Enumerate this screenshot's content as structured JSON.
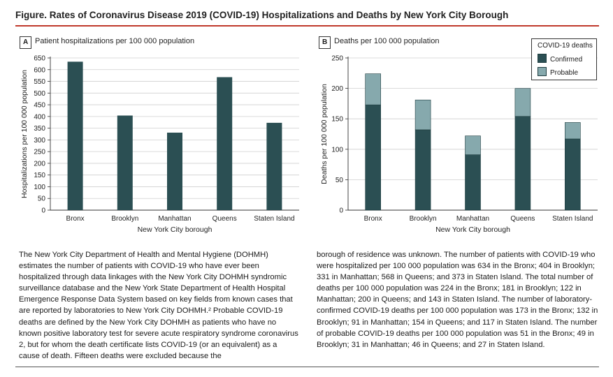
{
  "figure": {
    "title": "Figure. Rates of Coronavirus Disease 2019 (COVID-19) Hospitalizations and Deaths by New York City Borough"
  },
  "panel_a": {
    "label": "A",
    "heading": "Patient hospitalizations per 100 000 population"
  },
  "panel_b": {
    "label": "B",
    "heading": "Deaths per 100 000 population"
  },
  "legend": {
    "title": "COVID-19 deaths",
    "items": [
      "Confirmed",
      "Probable"
    ]
  },
  "colors": {
    "confirmed": "#2b4f53",
    "probable": "#86a9ad",
    "title_rule": "#c0392b"
  },
  "chart_data": [
    {
      "type": "bar",
      "categories": [
        "Bronx",
        "Brooklyn",
        "Manhattan",
        "Queens",
        "Staten Island"
      ],
      "values": [
        634,
        404,
        331,
        568,
        373
      ],
      "xlabel": "New York City borough",
      "ylabel": "Hospitalizations per 100 000 population",
      "ylim": [
        0,
        650
      ],
      "yticks": [
        0,
        50,
        100,
        150,
        200,
        250,
        300,
        350,
        400,
        450,
        500,
        550,
        600,
        650
      ],
      "grid": true
    },
    {
      "type": "bar",
      "stacked": true,
      "categories": [
        "Bronx",
        "Brooklyn",
        "Manhattan",
        "Queens",
        "Staten Island"
      ],
      "series": [
        {
          "name": "Confirmed",
          "values": [
            173,
            132,
            91,
            154,
            117
          ]
        },
        {
          "name": "Probable",
          "values": [
            51,
            49,
            31,
            46,
            27
          ]
        }
      ],
      "xlabel": "New York City borough",
      "ylabel": "Deaths per 100 000 population",
      "ylim": [
        0,
        250
      ],
      "yticks": [
        0,
        50,
        100,
        150,
        200,
        250
      ],
      "grid": true,
      "legend_position": "top-right"
    }
  ],
  "body_text": {
    "left": "The New York City Department of Health and Mental Hygiene (DOHMH) estimates the number of patients with COVID-19 who have ever been hospitalized through data linkages with the New York City DOHMH syndromic surveillance database and the New York State Department of Health Hospital Emergence Response Data System based on key fields from known cases that are reported by laboratories to New York City DOHMH.² Probable COVID-19 deaths are defined by the New York City DOHMH as patients who have no known positive laboratory test for severe acute respiratory syndrome coronavirus 2, but for whom the death certificate lists COVID-19 (or an equivalent) as a cause of death. Fifteen deaths were excluded because the",
    "right": "borough of residence was unknown. The number of patients with COVID-19 who were hospitalized per 100 000 population was 634 in the Bronx; 404 in Brooklyn; 331 in Manhattan; 568 in Queens; and 373 in Staten Island. The total number of deaths per 100 000 population was 224 in the Bronx; 181 in Brooklyn; 122 in Manhattan; 200 in Queens; and 143 in Staten Island. The number of laboratory-confirmed COVID-19 deaths per 100 000 population was 173 in the Bronx; 132 in Brooklyn; 91 in Manhattan; 154 in Queens; and 117 in Staten Island. The number of probable COVID-19 deaths per 100 000 population was 51 in the Bronx; 49 in Brooklyn; 31 in Manhattan; 46 in Queens; and 27 in Staten Island."
  }
}
